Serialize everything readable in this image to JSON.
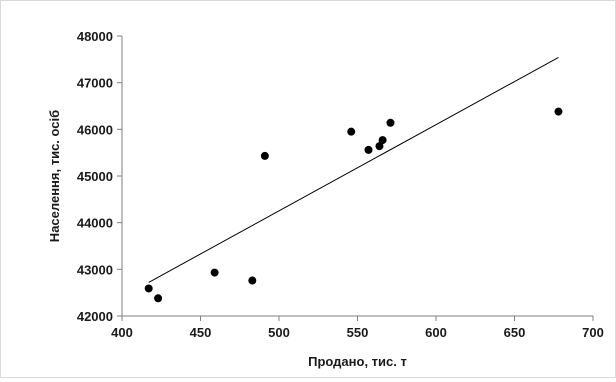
{
  "chart_data": {
    "type": "scatter",
    "xlabel": "Продано, тис. т",
    "ylabel": "Населення, тис. осіб",
    "xlim": [
      400,
      700
    ],
    "ylim": [
      42000,
      48000
    ],
    "x_ticks": [
      400,
      450,
      500,
      550,
      600,
      650,
      700
    ],
    "y_ticks": [
      42000,
      43000,
      44000,
      45000,
      46000,
      47000,
      48000
    ],
    "x_tick_labels": [
      "400",
      "450",
      "500",
      "550",
      "600",
      "650",
      "700"
    ],
    "y_tick_labels": [
      "42000",
      "43000",
      "44000",
      "45000",
      "46000",
      "47000",
      "48000"
    ],
    "points": [
      {
        "x": 417,
        "y": 42590
      },
      {
        "x": 423,
        "y": 42380
      },
      {
        "x": 459,
        "y": 42930
      },
      {
        "x": 483,
        "y": 42760
      },
      {
        "x": 491,
        "y": 45430
      },
      {
        "x": 546,
        "y": 45950
      },
      {
        "x": 557,
        "y": 45560
      },
      {
        "x": 564,
        "y": 45640
      },
      {
        "x": 566,
        "y": 45770
      },
      {
        "x": 571,
        "y": 46140
      },
      {
        "x": 678,
        "y": 46380
      }
    ],
    "trendline": {
      "x": [
        417,
        678
      ],
      "y": [
        42720,
        47540
      ]
    },
    "grid": false,
    "colors": {
      "points": "#000000",
      "trendline": "#000000",
      "axes": "#7f7f7f"
    }
  }
}
